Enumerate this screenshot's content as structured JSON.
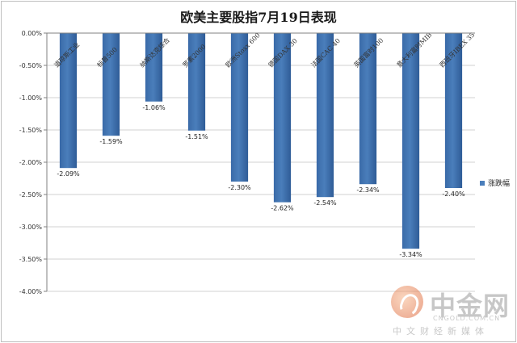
{
  "chart_data": {
    "type": "bar",
    "title": "欧美主要股指7月19日表现",
    "categories": [
      "道琼斯工业",
      "标普500",
      "纳斯达克综合",
      "罗素2000",
      "欧洲Stoxx 600",
      "德国DAX 30",
      "法国CAC 40",
      "英国富时100",
      "意大利富时MIB",
      "西班牙IBEX 35"
    ],
    "series": [
      {
        "name": "涨跌幅",
        "values": [
          -2.09,
          -1.59,
          -1.06,
          -1.51,
          -2.3,
          -2.62,
          -2.54,
          -2.34,
          -3.34,
          -2.4
        ]
      }
    ],
    "data_labels": [
      "-2.09%",
      "-1.59%",
      "-1.06%",
      "-1.51%",
      "-2.30%",
      "-2.62%",
      "-2.54%",
      "-2.34%",
      "-3.34%",
      "-2.40%"
    ],
    "yticks": [
      "0.00%",
      "-0.50%",
      "-1.00%",
      "-1.50%",
      "-2.00%",
      "-2.50%",
      "-3.00%",
      "-3.50%",
      "-4.00%"
    ],
    "ylim": [
      -4.0,
      0.0
    ],
    "grid": true,
    "legend_position": "right",
    "bar_color": "#4a7ebb"
  },
  "watermark": {
    "name": "中金网",
    "site": "CNGOLD.COM.CN",
    "subtitle": "中文财经新媒体"
  }
}
